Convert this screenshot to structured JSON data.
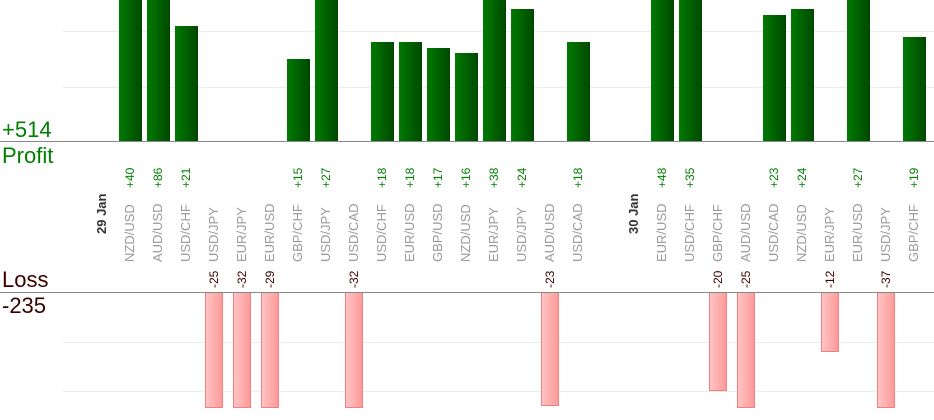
{
  "chart_data": {
    "type": "bar",
    "profit_label": "Profit",
    "profit_total": "+514",
    "loss_label": "Loss",
    "loss_total": "-235",
    "profit_color": "#006400",
    "loss_color": "#ffb0b0",
    "columns": [
      {
        "date": "29 Jan"
      },
      {
        "pair": "NZD/USD",
        "value": 40
      },
      {
        "pair": "AUD/USD",
        "value": 86
      },
      {
        "pair": "USD/CHF",
        "value": 21
      },
      {
        "pair": "USD/JPY",
        "value": -25
      },
      {
        "pair": "EUR/JPY",
        "value": -32
      },
      {
        "pair": "EUR/USD",
        "value": -29
      },
      {
        "pair": "GBP/CHF",
        "value": 15
      },
      {
        "pair": "USD/JPY",
        "value": 27
      },
      {
        "pair": "USD/CAD",
        "value": -32
      },
      {
        "pair": "USD/CHF",
        "value": 18
      },
      {
        "pair": "EUR/USD",
        "value": 18
      },
      {
        "pair": "GBP/USD",
        "value": 17
      },
      {
        "pair": "NZD/USD",
        "value": 16
      },
      {
        "pair": "EUR/JPY",
        "value": 38
      },
      {
        "pair": "USD/JPY",
        "value": 24
      },
      {
        "pair": "AUD/USD",
        "value": -23
      },
      {
        "pair": "USD/CAD",
        "value": 18
      },
      {},
      {
        "date": "30 Jan"
      },
      {
        "pair": "EUR/USD",
        "value": 48
      },
      {
        "pair": "USD/CHF",
        "value": 35
      },
      {
        "pair": "GBP/CHF",
        "value": -20
      },
      {
        "pair": "AUD/USD",
        "value": -25
      },
      {
        "pair": "USD/CAD",
        "value": 23
      },
      {
        "pair": "NZD/USD",
        "value": 24
      },
      {
        "pair": "EUR/JPY",
        "value": -12
      },
      {
        "pair": "EUR/USD",
        "value": 27
      },
      {
        "pair": "USD/JPY",
        "value": -37
      },
      {
        "pair": "GBP/CHF",
        "value": 19
      }
    ]
  }
}
